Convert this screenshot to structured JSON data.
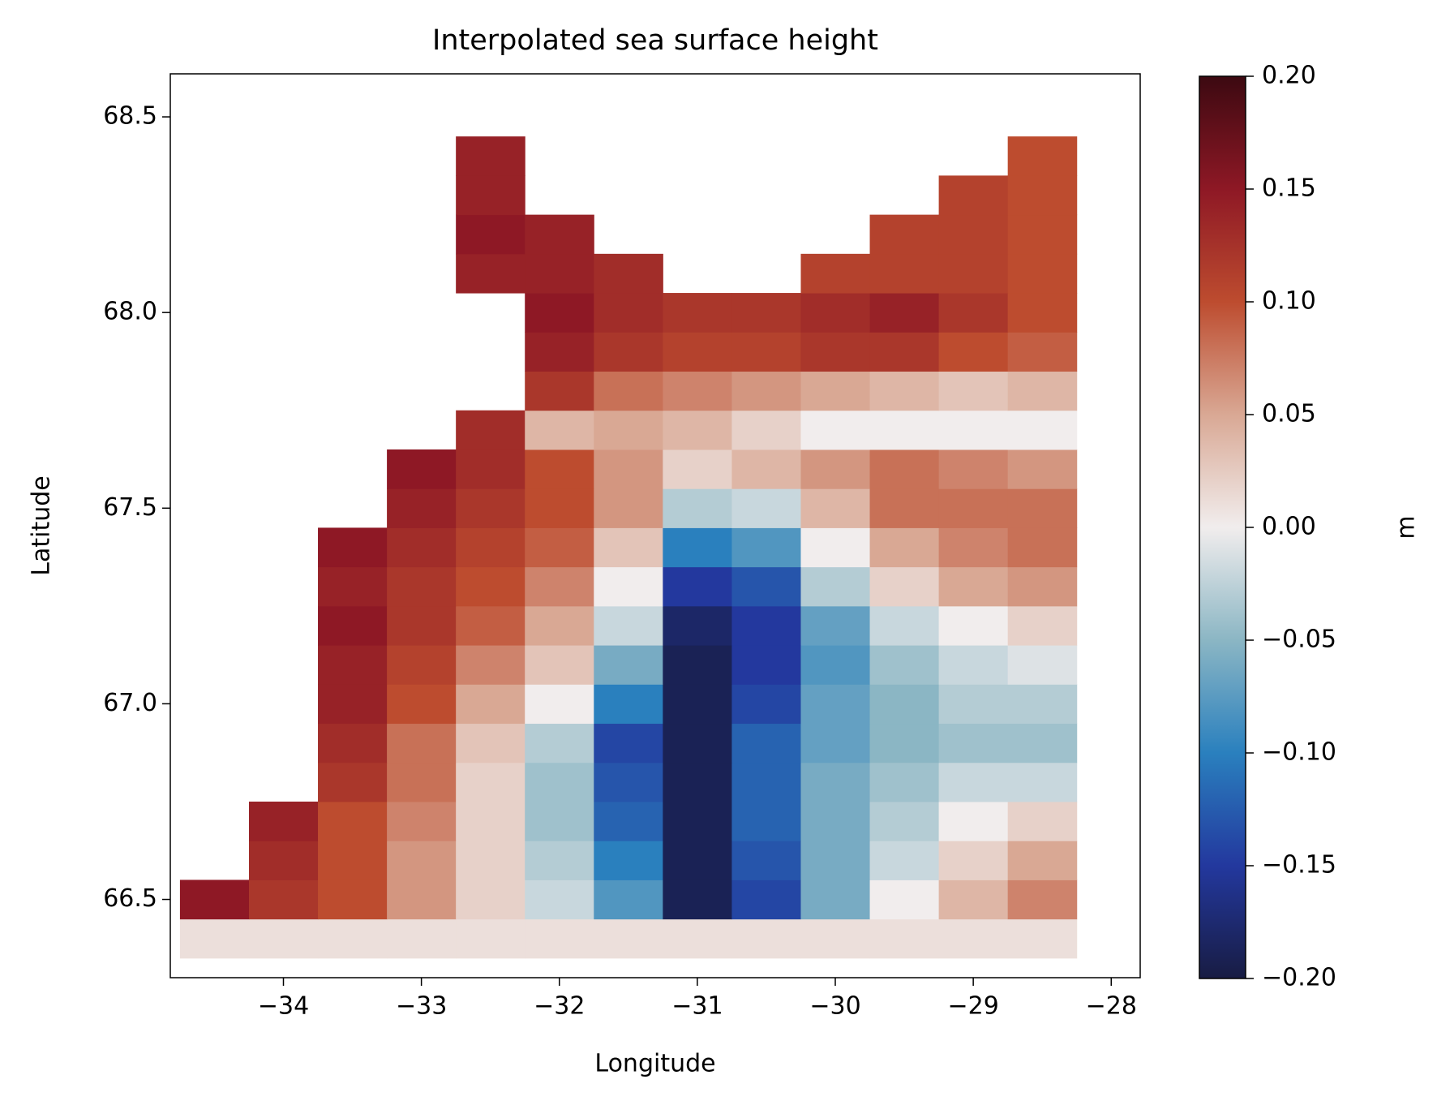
{
  "chart_data": {
    "type": "heatmap",
    "title": "Interpolated sea surface height",
    "x_label": "Longitude",
    "y_label": "Latitude",
    "x": [
      -34.5,
      -34,
      -33.5,
      -33,
      -32.5,
      -32,
      -31.5,
      -31,
      -30.5,
      -30,
      -29.5,
      -29,
      -28.5
    ],
    "y": [
      66.4,
      66.5,
      66.6,
      66.7,
      66.8,
      66.9,
      67.0,
      67.1,
      67.2,
      67.3,
      67.4,
      67.5,
      67.6,
      67.7,
      67.8,
      67.9,
      68.0,
      68.1,
      68.2,
      68.3,
      68.4
    ],
    "z": [
      [
        0.01,
        0.01,
        0.01,
        0.01,
        0.01,
        0.01,
        0.01,
        0.01,
        0.01,
        0.01,
        0.01,
        0.01,
        0.01
      ],
      [
        0.15,
        0.12,
        0.1,
        0.06,
        0.02,
        -0.02,
        -0.08,
        -0.19,
        -0.14,
        -0.06,
        0.0,
        0.04,
        0.07
      ],
      [
        null,
        0.13,
        0.1,
        0.06,
        0.02,
        -0.03,
        -0.1,
        -0.19,
        -0.13,
        -0.06,
        -0.02,
        0.02,
        0.05
      ],
      [
        null,
        0.14,
        0.1,
        0.07,
        0.02,
        -0.04,
        -0.12,
        -0.19,
        -0.12,
        -0.06,
        -0.03,
        0.0,
        0.02
      ],
      [
        null,
        null,
        0.12,
        0.08,
        0.02,
        -0.04,
        -0.13,
        -0.19,
        -0.12,
        -0.06,
        -0.04,
        -0.02,
        -0.02
      ],
      [
        null,
        null,
        0.13,
        0.08,
        0.03,
        -0.03,
        -0.14,
        -0.19,
        -0.12,
        -0.07,
        -0.05,
        -0.04,
        -0.04
      ],
      [
        null,
        null,
        0.14,
        0.1,
        0.05,
        0.0,
        -0.1,
        -0.19,
        -0.14,
        -0.07,
        -0.05,
        -0.03,
        -0.03
      ],
      [
        null,
        null,
        0.14,
        0.11,
        0.07,
        0.03,
        -0.06,
        -0.19,
        -0.15,
        -0.08,
        -0.04,
        -0.02,
        -0.01
      ],
      [
        null,
        null,
        0.15,
        0.12,
        0.09,
        0.05,
        -0.02,
        -0.18,
        -0.15,
        -0.07,
        -0.02,
        0.0,
        0.02
      ],
      [
        null,
        null,
        0.14,
        0.12,
        0.1,
        0.07,
        0.0,
        -0.15,
        -0.13,
        -0.03,
        0.02,
        0.05,
        0.06
      ],
      [
        null,
        null,
        0.15,
        0.13,
        0.11,
        0.09,
        0.03,
        -0.1,
        -0.08,
        0.0,
        0.05,
        0.07,
        0.08
      ],
      [
        null,
        null,
        null,
        0.14,
        0.12,
        0.1,
        0.06,
        -0.03,
        -0.02,
        0.04,
        0.08,
        0.08,
        0.08
      ],
      [
        null,
        null,
        null,
        0.15,
        0.13,
        0.1,
        0.06,
        0.02,
        0.04,
        0.06,
        0.08,
        0.07,
        0.06
      ],
      [
        null,
        null,
        null,
        null,
        0.13,
        0.04,
        0.05,
        0.04,
        0.02,
        0.0,
        0.0,
        0.0,
        0.0
      ],
      [
        null,
        null,
        null,
        null,
        null,
        0.12,
        0.08,
        0.07,
        0.06,
        0.05,
        0.04,
        0.03,
        0.04
      ],
      [
        null,
        null,
        null,
        null,
        null,
        0.14,
        0.12,
        0.11,
        0.11,
        0.12,
        0.12,
        0.1,
        0.09
      ],
      [
        null,
        null,
        null,
        null,
        null,
        0.15,
        0.13,
        0.12,
        0.12,
        0.13,
        0.14,
        0.12,
        0.1
      ],
      [
        null,
        null,
        null,
        null,
        0.14,
        0.14,
        0.13,
        null,
        null,
        0.11,
        0.11,
        0.11,
        0.1
      ],
      [
        null,
        null,
        null,
        null,
        0.15,
        0.14,
        null,
        null,
        null,
        null,
        0.11,
        0.11,
        0.1
      ],
      [
        null,
        null,
        null,
        null,
        0.14,
        null,
        null,
        null,
        null,
        null,
        null,
        0.11,
        0.1
      ],
      [
        null,
        null,
        null,
        null,
        0.14,
        null,
        null,
        null,
        null,
        null,
        null,
        null,
        0.1
      ]
    ],
    "xlim": [
      -34.82,
      -27.79
    ],
    "ylim": [
      66.3,
      68.61
    ],
    "xticks": [
      {
        "value": -34,
        "label": "−34"
      },
      {
        "value": -33,
        "label": "−33"
      },
      {
        "value": -32,
        "label": "−32"
      },
      {
        "value": -31,
        "label": "−31"
      },
      {
        "value": -30,
        "label": "−30"
      },
      {
        "value": -29,
        "label": "−29"
      },
      {
        "value": -28,
        "label": "−28"
      }
    ],
    "yticks": [
      {
        "value": 66.5,
        "label": "66.5"
      },
      {
        "value": 67,
        "label": "67.0"
      },
      {
        "value": 67.5,
        "label": "67.5"
      },
      {
        "value": 68,
        "label": "68.0"
      },
      {
        "value": 68.5,
        "label": "68.5"
      }
    ],
    "colorbar": {
      "label": "m",
      "lim": [
        -0.2,
        0.2
      ],
      "colors": [
        "#181c43",
        "#23389e",
        "#2a80be",
        "#8bb6c4",
        "#f1eded",
        "#d9a894",
        "#bd4c2f",
        "#8e1825",
        "#3c0911"
      ],
      "ticks": [
        {
          "value": -0.2,
          "label": "−0.20"
        },
        {
          "value": -0.15,
          "label": "−0.15"
        },
        {
          "value": -0.1,
          "label": "−0.10"
        },
        {
          "value": -0.05,
          "label": "−0.05"
        },
        {
          "value": 0,
          "label": "0.00"
        },
        {
          "value": 0.05,
          "label": "0.05"
        },
        {
          "value": 0.1,
          "label": "0.10"
        },
        {
          "value": 0.15,
          "label": "0.15"
        },
        {
          "value": 0.2,
          "label": "0.20"
        }
      ]
    }
  }
}
